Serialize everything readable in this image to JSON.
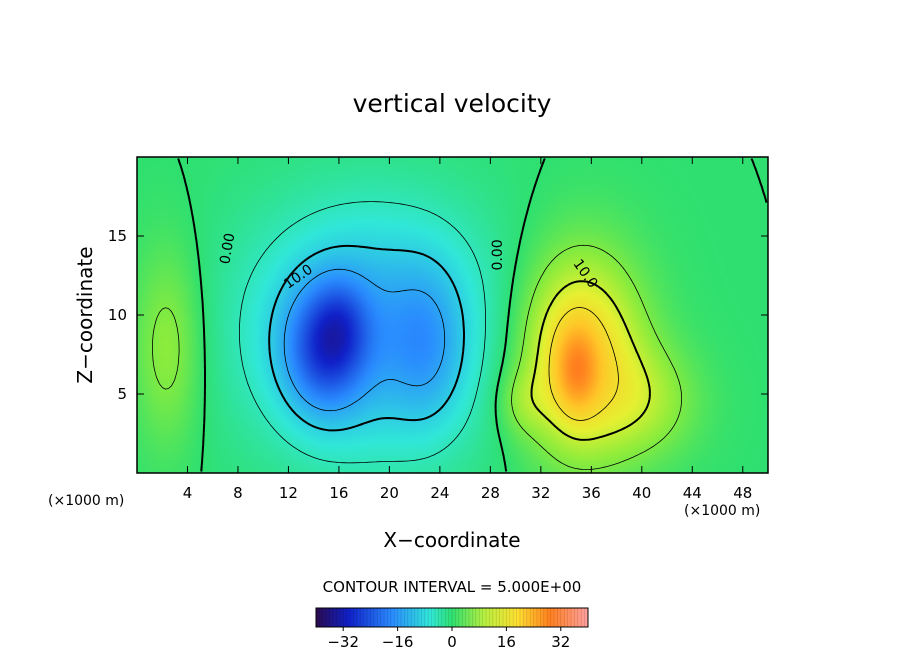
{
  "chart_data": {
    "type": "heatmap",
    "title": "vertical velocity",
    "xlabel": "X−coordinate",
    "ylabel": "Z−coordinate",
    "x_unit_left": "(×1000 m)",
    "x_unit_right": "(×1000 m)",
    "xlim": [
      0,
      50
    ],
    "ylim": [
      0,
      20
    ],
    "x_ticks": [
      4,
      8,
      12,
      16,
      20,
      24,
      28,
      32,
      36,
      40,
      44,
      48
    ],
    "y_ticks": [
      5,
      10,
      15
    ],
    "contour_interval_label": "CONTOUR INTERVAL = 5.000E+00",
    "contour_labels": [
      {
        "text": "0.00",
        "x": 7.2,
        "y": 14.2,
        "rotate": -80
      },
      {
        "text": "10.0",
        "x": 12.8,
        "y": 12.4,
        "rotate": -35
      },
      {
        "text": "0.00",
        "x": 28.6,
        "y": 13.8,
        "rotate": -90
      },
      {
        "text": "10.0",
        "x": 35.5,
        "y": 12.6,
        "rotate": 55
      }
    ],
    "colorbar": {
      "min": -40,
      "max": 40,
      "tick_values": [
        -32,
        -16,
        0,
        16,
        32
      ],
      "tick_labels": [
        "−32",
        "−16",
        "0",
        "16",
        "32"
      ]
    },
    "features": [
      {
        "kind": "downdraft",
        "cx": 18.5,
        "cz": 9.0,
        "sx": 7.0,
        "sz": 5.5,
        "amp": -15
      },
      {
        "kind": "downdraft",
        "cx": 14.8,
        "cz": 7.8,
        "sx": 2.2,
        "sz": 2.8,
        "amp": -16
      },
      {
        "kind": "downdraft",
        "cx": 16.2,
        "cz": 9.5,
        "sx": 1.5,
        "sz": 2.0,
        "amp": -6
      },
      {
        "kind": "downdraft",
        "cx": 23.0,
        "cz": 8.0,
        "sx": 2.0,
        "sz": 3.5,
        "amp": -6
      },
      {
        "kind": "updraft",
        "cx": 35.0,
        "cz": 7.5,
        "sx": 3.5,
        "sz": 4.5,
        "amp": 18
      },
      {
        "kind": "updraft",
        "cx": 34.8,
        "cz": 6.5,
        "sx": 1.2,
        "sz": 2.0,
        "amp": 10
      },
      {
        "kind": "updraft",
        "cx": 40.5,
        "cz": 4.5,
        "sx": 3.0,
        "sz": 2.5,
        "amp": 6
      },
      {
        "kind": "updraft",
        "cx": 2.5,
        "cz": 8.0,
        "sx": 2.0,
        "sz": 4.5,
        "amp": 7
      },
      {
        "kind": "updraft",
        "cx": 30.5,
        "cz": 4.5,
        "sx": 1.5,
        "sz": 1.5,
        "amp": 4
      }
    ],
    "grid": false
  }
}
